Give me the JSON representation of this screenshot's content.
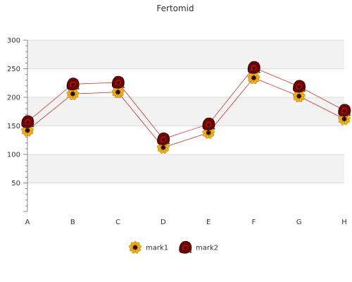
{
  "chart_data": {
    "type": "line",
    "title": "Fertomid",
    "xlabel": "",
    "ylabel": "",
    "categories": [
      "A",
      "B",
      "C",
      "D",
      "E",
      "F",
      "G",
      "H"
    ],
    "ylim": [
      0,
      300
    ],
    "yticks": [
      50,
      100,
      150,
      200,
      250,
      300
    ],
    "grid": true,
    "legend_position": "bottom",
    "series": [
      {
        "name": "mark1",
        "marker": "sunflower-icon",
        "color": "#e8a317",
        "values": [
          142,
          206,
          209,
          112,
          138,
          234,
          202,
          162
        ]
      },
      {
        "name": "mark2",
        "marker": "rose-icon",
        "color": "#8b0000",
        "values": [
          157,
          223,
          226,
          127,
          153,
          252,
          219,
          177
        ]
      }
    ]
  }
}
